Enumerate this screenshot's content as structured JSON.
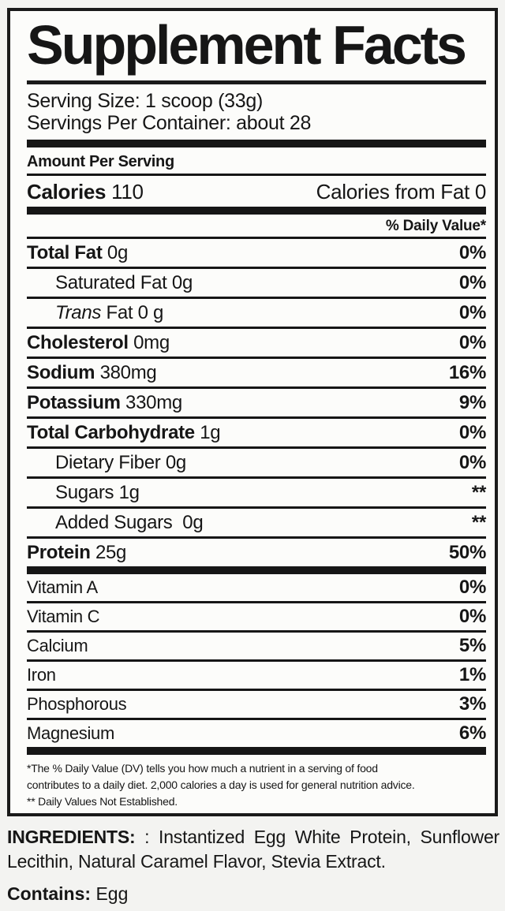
{
  "label": {
    "title": "Supplement Facts",
    "serving_size": "Serving Size: 1 scoop (33g)",
    "servings_per_container": "Servings Per Container: about 28",
    "amount_per_serving": "Amount Per Serving",
    "calories_label": "Calories",
    "calories_value": "110",
    "calories_from_fat": "Calories from Fat 0",
    "daily_value_header": "% Daily Value*",
    "nutrients": [
      {
        "name": "Total Fat",
        "amount": "0g",
        "dv": "0%"
      },
      {
        "name": "Saturated Fat",
        "amount": "0g",
        "dv": "0%"
      },
      {
        "name": "Trans",
        "name_rest": "Fat",
        "amount": "0 g",
        "dv": "0%"
      },
      {
        "name": "Cholesterol",
        "amount": "0mg",
        "dv": "0%"
      },
      {
        "name": "Sodium",
        "amount": "380mg",
        "dv": "16%"
      },
      {
        "name": "Potassium",
        "amount": "330mg",
        "dv": "9%"
      },
      {
        "name": "Total Carbohydrate",
        "amount": "1g",
        "dv": "0%"
      },
      {
        "name": "Dietary Fiber",
        "amount": "0g",
        "dv": "0%"
      },
      {
        "name": "Sugars",
        "amount": "1g",
        "dv": "**"
      },
      {
        "name": "Added Sugars",
        "amount": "0g",
        "dv": "**"
      },
      {
        "name": "Protein",
        "amount": "25g",
        "dv": "50%"
      }
    ],
    "vitamins": [
      {
        "name": "Vitamin A",
        "dv": "0%"
      },
      {
        "name": "Vitamin C",
        "dv": "0%"
      },
      {
        "name": "Calcium",
        "dv": "5%"
      },
      {
        "name": "Iron",
        "dv": "1%"
      },
      {
        "name": "Phosphorous",
        "dv": "3%"
      },
      {
        "name": "Magnesium",
        "dv": "6%"
      }
    ],
    "footnote_lines": [
      "*The % Daily Value (DV) tells you how much a nutrient in a serving of food",
      "contributes to a daily diet. 2,000 calories a day is used for general nutrition advice.",
      "** Daily Values Not Established."
    ]
  },
  "below": {
    "ingredients_label": "INGREDIENTS:",
    "ingredients_text": ": Instantized Egg White Protein, Sunflower Lecithin, Natural Caramel Flavor, Stevia Extract.",
    "contains_label": "Contains:",
    "contains_text": "Egg"
  },
  "colors": {
    "ink": "#161616",
    "box_background": "#fcfcfa",
    "page_background": "#f3f3f1"
  }
}
